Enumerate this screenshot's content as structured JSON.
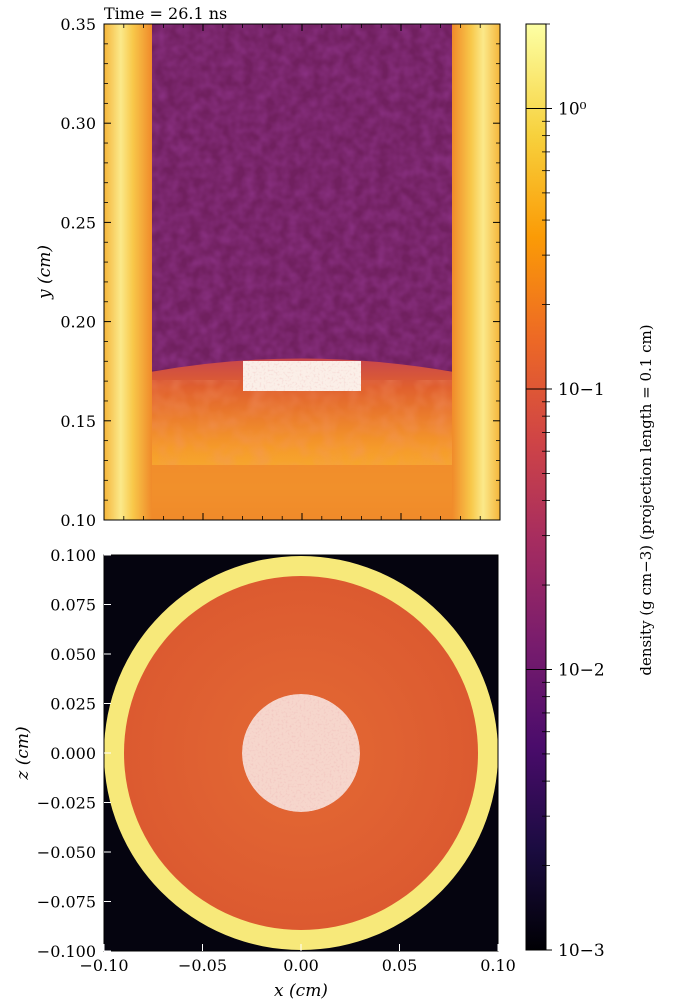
{
  "time_label": "Time = 26.1 ns",
  "colors": {
    "cmap": [
      "#000004",
      "#1b0c41",
      "#4a0c6b",
      "#781c6d",
      "#a52c60",
      "#cf4446",
      "#ed6925",
      "#fb9b06",
      "#f7d13d",
      "#fcffa4"
    ],
    "fill_density_color": "#e1642f",
    "wall_color": "#f7e97a",
    "low_density_color": "#70205f",
    "background_color": "#05040f"
  },
  "chart_data": [
    {
      "type": "heatmap",
      "panel": "top",
      "description": "density projection in x-y plane",
      "xlim": [
        -0.1,
        0.1
      ],
      "ylim": [
        0.1,
        0.35
      ],
      "xlabel": "",
      "ylabel": "y (cm)",
      "yticks": [
        "0.10",
        "0.15",
        "0.20",
        "0.25",
        "0.30",
        "0.35"
      ],
      "ytick_values": [
        0.1,
        0.15,
        0.2,
        0.25,
        0.3,
        0.35
      ],
      "regions": {
        "wall_inner_x": [
          -0.075,
          0.075
        ],
        "front_y": 0.178,
        "foam_edge_y": 0.12,
        "insert_x": [
          -0.03,
          0.03
        ],
        "insert_y": [
          0.165,
          0.18
        ]
      }
    },
    {
      "type": "heatmap",
      "panel": "bottom",
      "description": "density projection in x-z plane",
      "xlim": [
        -0.1,
        0.1
      ],
      "ylim": [
        -0.1,
        0.1
      ],
      "xlabel": "x (cm)",
      "ylabel": "z (cm)",
      "xticks": [
        "−0.10",
        "−0.05",
        "0.00",
        "0.05",
        "0.10"
      ],
      "xtick_values": [
        -0.1,
        -0.05,
        0.0,
        0.05,
        0.1
      ],
      "yticks": [
        "−0.100",
        "−0.075",
        "−0.050",
        "−0.025",
        "0.000",
        "0.025",
        "0.050",
        "0.075",
        "0.100"
      ],
      "ytick_values": [
        -0.1,
        -0.075,
        -0.05,
        -0.025,
        0.0,
        0.025,
        0.05,
        0.075,
        0.1
      ],
      "regions": {
        "outer_radius": 0.1,
        "inner_radius": 0.09,
        "insert_radius": 0.03
      }
    },
    {
      "type": "colorbar",
      "scale": "log",
      "range": [
        0.001,
        2.0
      ],
      "tick_labels": [
        "10−3",
        "10−2",
        "10−1",
        "10⁰"
      ],
      "tick_values": [
        0.001,
        0.01,
        0.1,
        1
      ],
      "label": "density (g cm−3)   (projection length = 0.1 cm)"
    }
  ]
}
